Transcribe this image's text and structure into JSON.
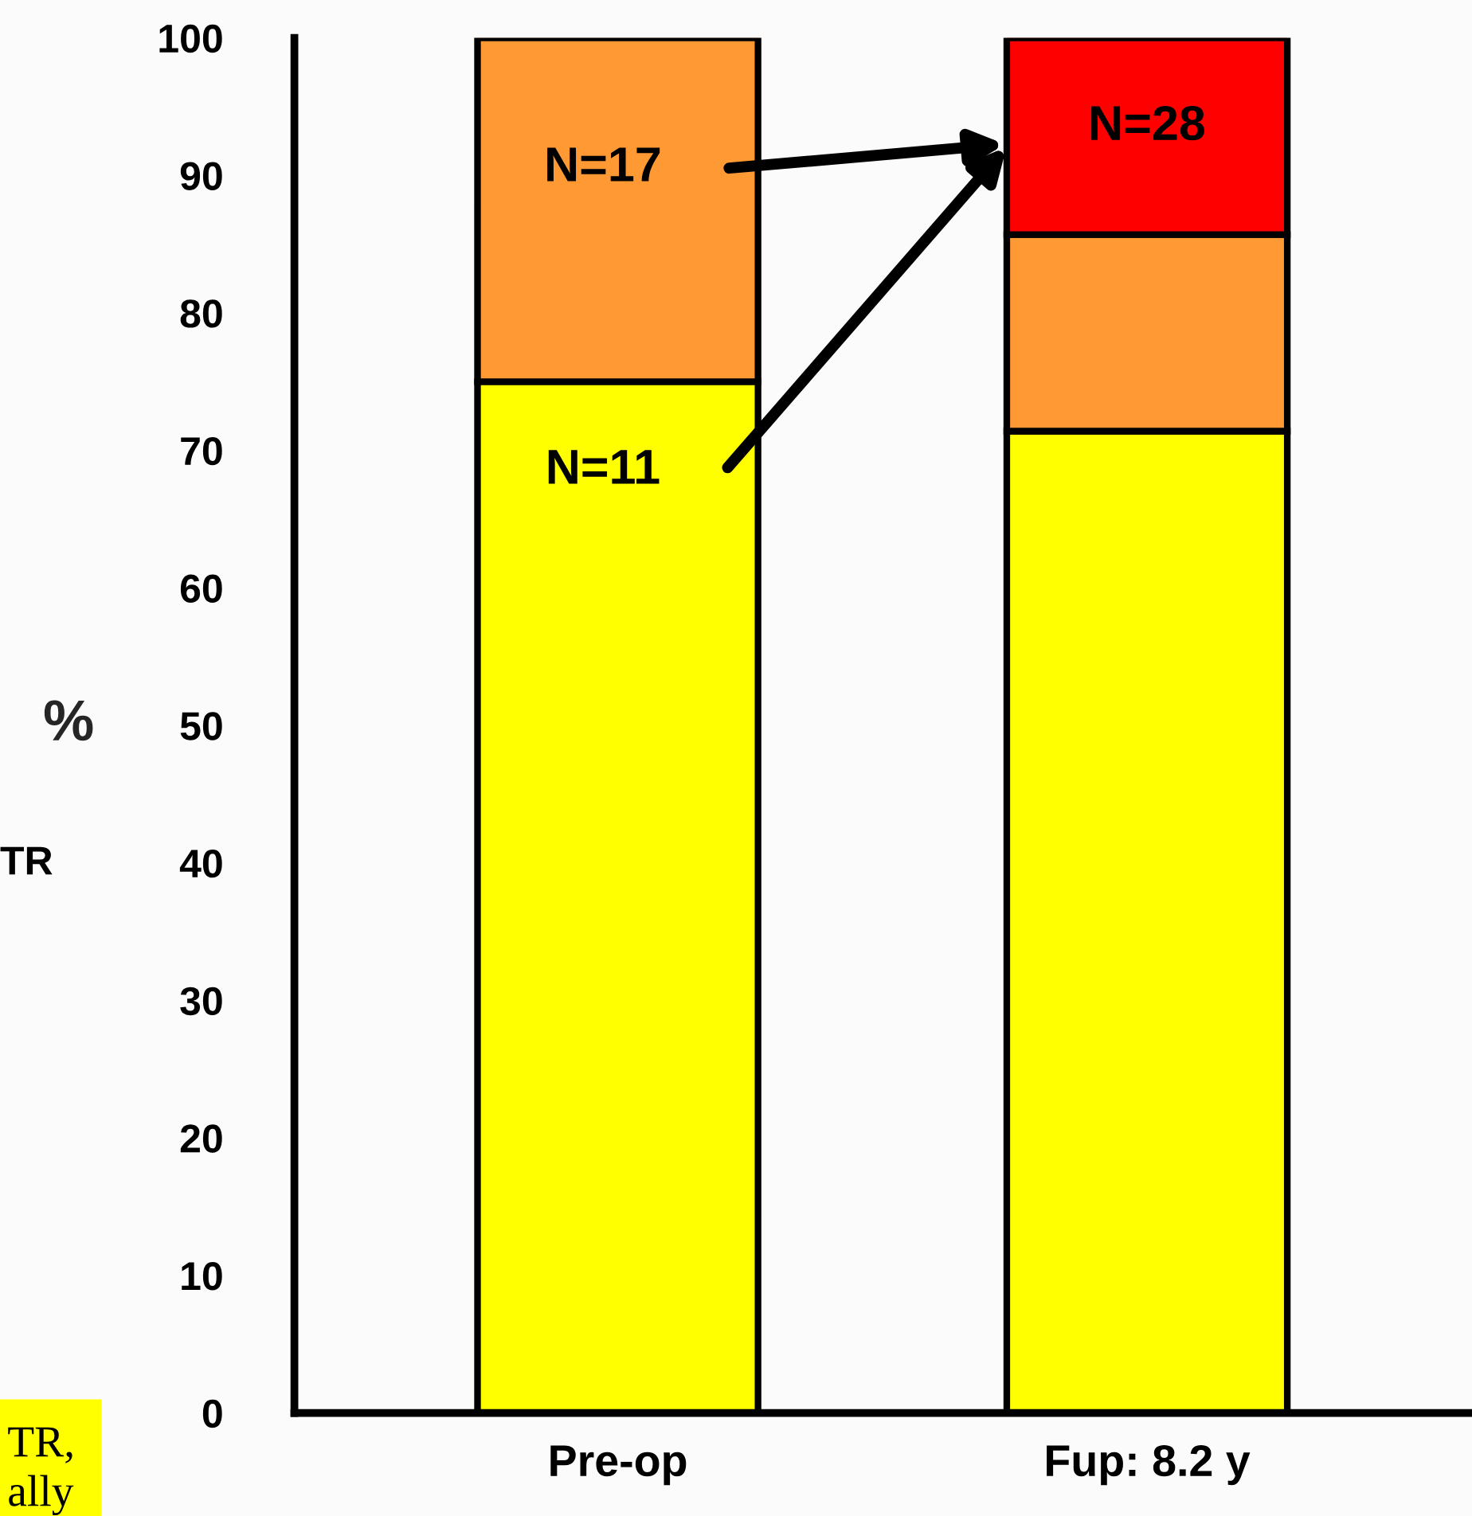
{
  "chart_data": {
    "type": "bar",
    "stacked": true,
    "ylabel": "%",
    "categories": [
      "Pre-op",
      "Fup: 8.2 y"
    ],
    "series": [
      {
        "color": "#ffff00",
        "values": [
          75,
          71.4
        ]
      },
      {
        "color": "#ff9933",
        "values": [
          25,
          14.3
        ]
      },
      {
        "color": "#ff0000",
        "values": [
          0,
          14.3
        ]
      }
    ],
    "ylim": [
      0,
      100
    ],
    "yticks": [
      0,
      10,
      20,
      30,
      40,
      50,
      60,
      70,
      80,
      90,
      100
    ],
    "grid": false,
    "legend": false,
    "annotations": [
      "N=17",
      "N=11",
      "N=28",
      "TR",
      "TR,\nally"
    ]
  }
}
